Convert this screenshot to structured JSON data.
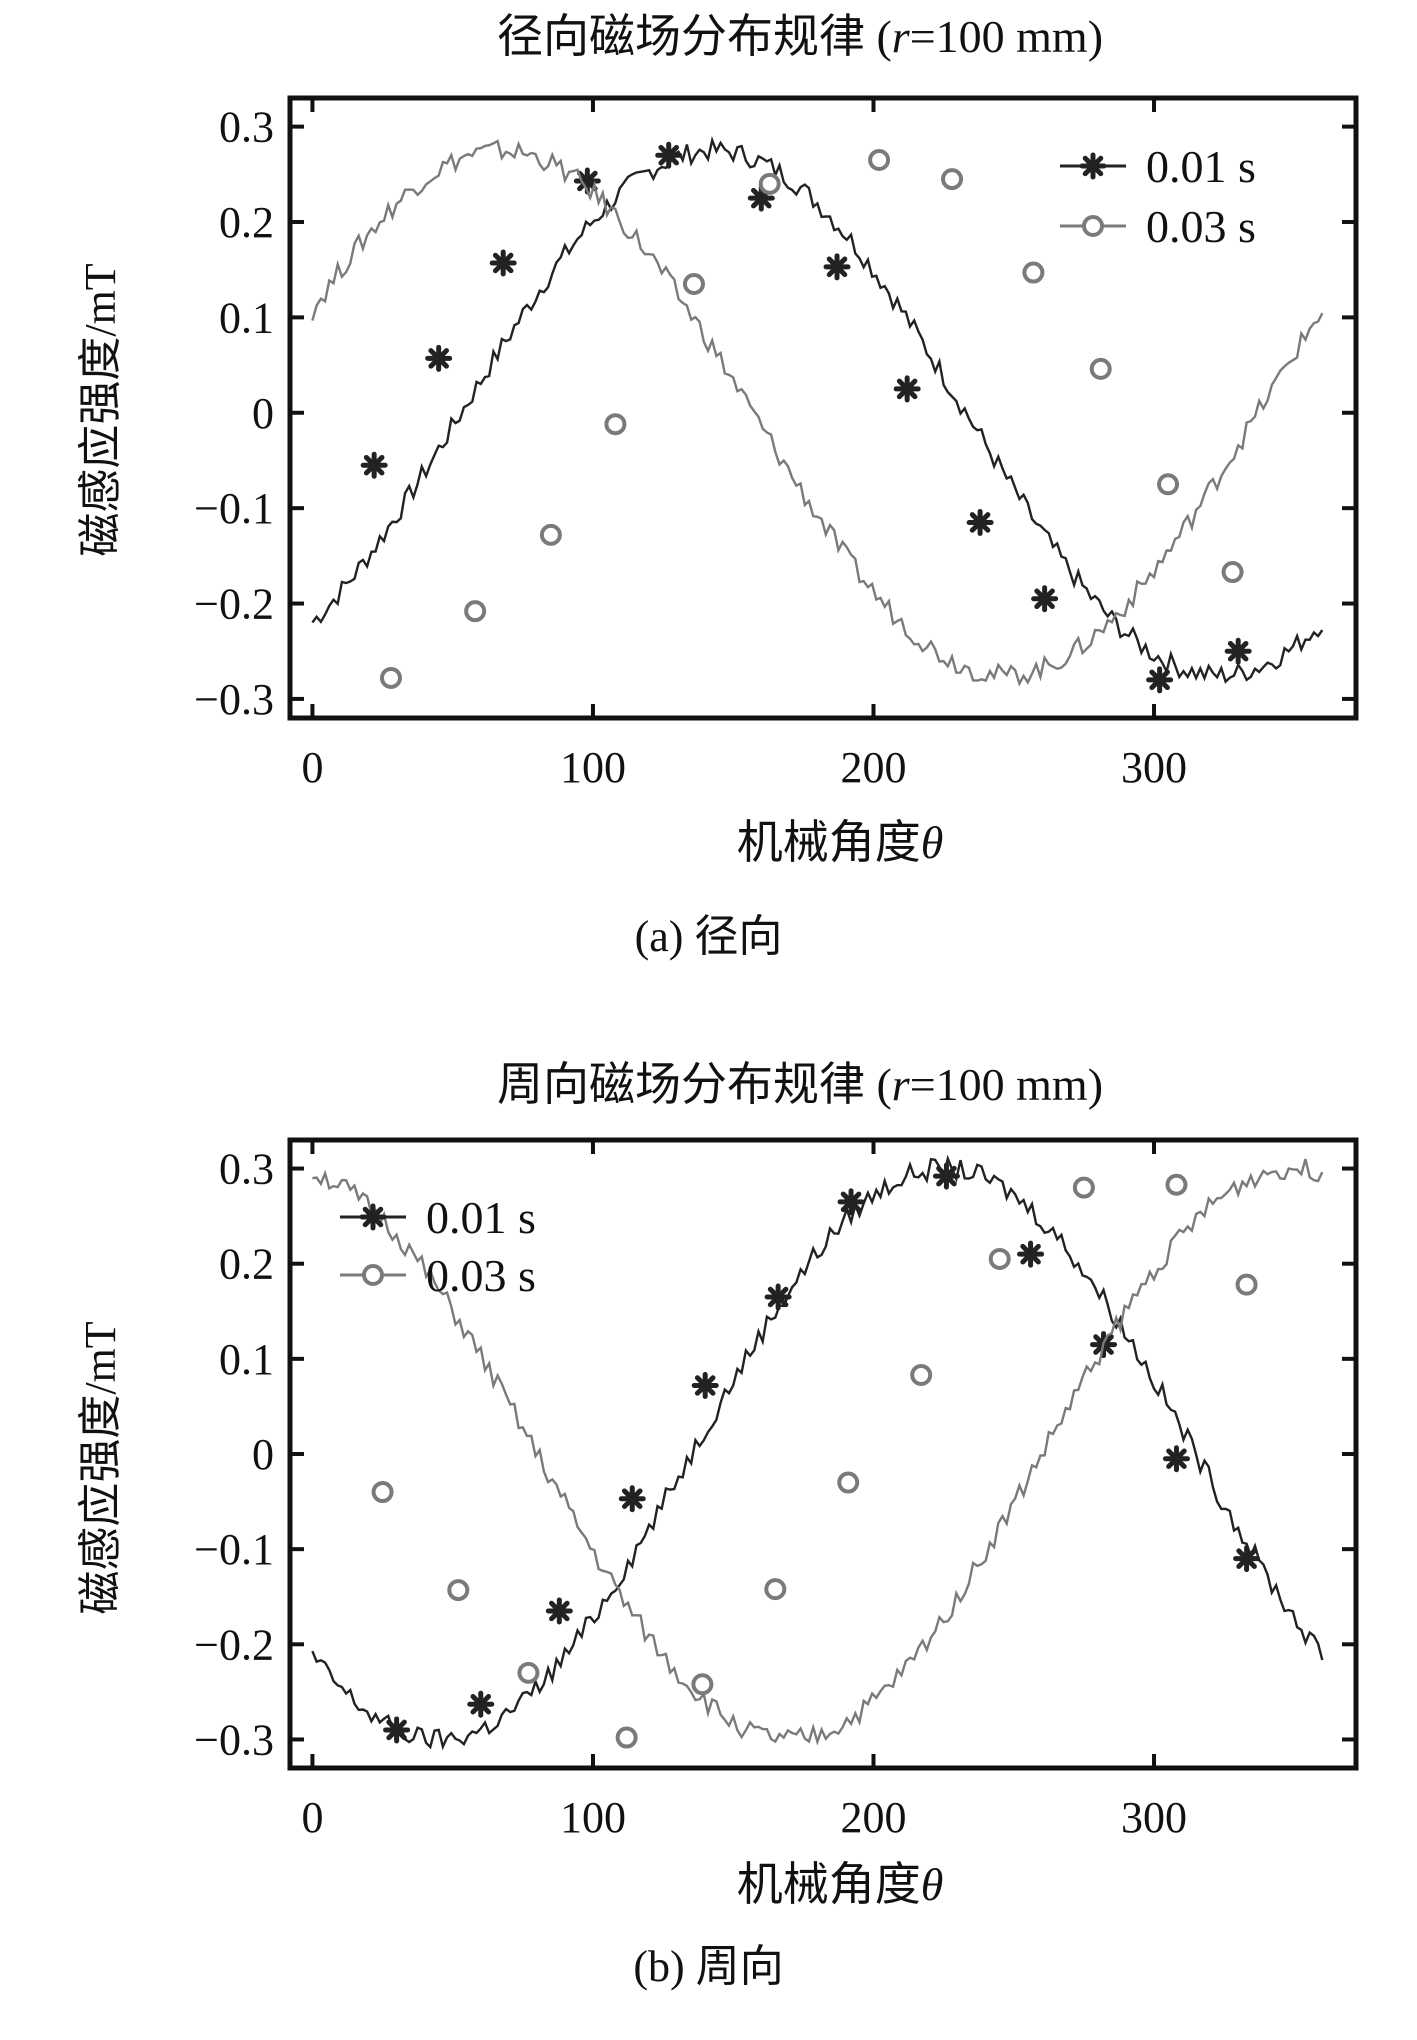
{
  "figures": [
    {
      "caption": "(a) 径向"
    },
    {
      "caption": "(b) 周向"
    }
  ],
  "chart_data": [
    {
      "type": "line",
      "title_prefix": "径向磁场分布规律 (",
      "title_var": "r",
      "title_suffix": "=100 mm)",
      "xlabel_text": "机械角度",
      "xlabel_symbol": "θ",
      "ylabel": "磁感应强度/mT",
      "xlim": [
        -8,
        372
      ],
      "ylim": [
        -0.32,
        0.33
      ],
      "xticks": [
        0,
        100,
        200,
        300
      ],
      "xtick_labels": [
        "0",
        "100",
        "200",
        "300"
      ],
      "yticks": [
        0.3,
        0.2,
        0.1,
        0,
        -0.1,
        -0.2,
        -0.3
      ],
      "ytick_labels": [
        "0.3",
        "0.2",
        "0.1",
        "0",
        "−0.1",
        "−0.2",
        "−0.3"
      ],
      "legend_position": "top-right",
      "series": [
        {
          "name": "0.01 s",
          "marker": "star",
          "color": "#222222",
          "waveform": {
            "amplitude": 0.275,
            "phase_deg": 37
          },
          "marker_x": [
            22,
            45,
            68,
            98,
            127,
            160,
            187,
            212,
            238,
            261,
            302,
            330
          ],
          "marker_y": [
            -0.055,
            0.057,
            0.157,
            0.243,
            0.27,
            0.225,
            0.153,
            0.025,
            -0.115,
            -0.195,
            -0.28,
            -0.25
          ]
        },
        {
          "name": "0.03 s",
          "marker": "circle",
          "color": "#7a7a7a",
          "waveform": {
            "amplitude": 0.275,
            "phase_deg": 113
          },
          "marker_x": [
            28,
            58,
            85,
            108,
            136,
            163,
            202,
            228,
            257,
            281,
            305,
            328
          ],
          "marker_y": [
            -0.278,
            -0.208,
            -0.128,
            -0.012,
            0.135,
            0.24,
            0.265,
            0.245,
            0.147,
            0.046,
            -0.075,
            -0.167
          ]
        }
      ]
    },
    {
      "type": "line",
      "title_prefix": "周向磁场分布规律 (",
      "title_var": "r",
      "title_suffix": "=100 mm)",
      "xlabel_text": "机械角度",
      "xlabel_symbol": "θ",
      "ylabel": "磁感应强度/mT",
      "xlim": [
        -8,
        372
      ],
      "ylim": [
        -0.33,
        0.33
      ],
      "xticks": [
        0,
        100,
        200,
        300
      ],
      "xtick_labels": [
        "0",
        "100",
        "200",
        "300"
      ],
      "yticks": [
        0.3,
        0.2,
        0.1,
        0,
        -0.1,
        -0.2,
        -0.3
      ],
      "ytick_labels": [
        "0.3",
        "0.2",
        "0.1",
        "0",
        "−0.1",
        "−0.2",
        "−0.3"
      ],
      "legend_position": "top-left",
      "series": [
        {
          "name": "0.01 s",
          "marker": "star",
          "color": "#222222",
          "waveform": {
            "amplitude": 0.3,
            "phase_deg": -45
          },
          "marker_x": [
            30,
            60,
            88,
            114,
            140,
            166,
            192,
            226,
            256,
            282,
            308,
            333
          ],
          "marker_y": [
            -0.29,
            -0.263,
            -0.165,
            -0.047,
            0.072,
            0.165,
            0.265,
            0.292,
            0.21,
            0.115,
            -0.005,
            -0.11
          ]
        },
        {
          "name": "0.03 s",
          "marker": "circle",
          "color": "#7a7a7a",
          "waveform": {
            "amplitude": 0.3,
            "phase_deg": -170
          },
          "marker_x": [
            25,
            52,
            77,
            112,
            139,
            165,
            191,
            217,
            245,
            275,
            308,
            333
          ],
          "marker_y": [
            -0.04,
            -0.143,
            -0.23,
            -0.298,
            -0.242,
            -0.142,
            -0.03,
            0.083,
            0.205,
            0.28,
            0.283,
            0.178
          ]
        }
      ]
    }
  ]
}
